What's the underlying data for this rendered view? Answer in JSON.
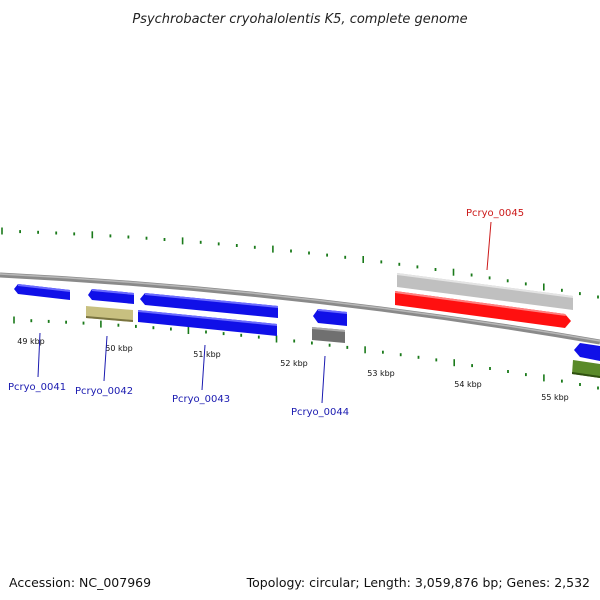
{
  "title": "Psychrobacter cryohalolentis K5, complete genome",
  "footer": {
    "accession": "Accession: NC_007969",
    "summary": "Topology: circular; Length: 3,059,876 bp; Genes: 2,532"
  },
  "colors": {
    "backbone": "#888888",
    "tick": "#1a7a1a",
    "blue_gene": "#1010e8",
    "red_gene": "#ff1010",
    "grey_gene": "#c0c0c0",
    "dark_grey_gene": "#707070",
    "tan_gene": "#c8c080",
    "olive_gene": "#5a8a2a",
    "blue_label": "#1a1ab0",
    "red_label": "#cc1a1a"
  },
  "kbp_labels": [
    "49 kbp",
    "50 kbp",
    "51 kbp",
    "52 kbp",
    "53 kbp",
    "54 kbp",
    "55 kbp"
  ],
  "gene_labels": [
    {
      "text": "Pcryo_0041",
      "color": "blue"
    },
    {
      "text": "Pcryo_0042",
      "color": "blue"
    },
    {
      "text": "Pcryo_0043",
      "color": "blue"
    },
    {
      "text": "Pcryo_0044",
      "color": "blue"
    },
    {
      "text": "Pcryo_0045",
      "color": "red"
    }
  ]
}
